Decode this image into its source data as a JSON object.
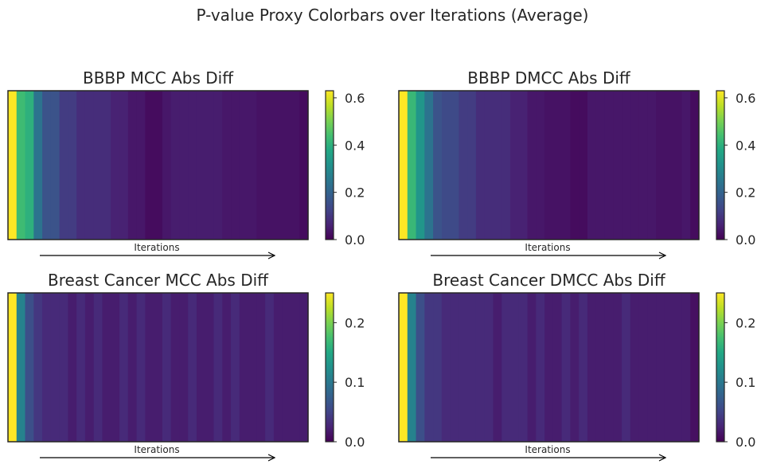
{
  "figure": {
    "title": "P-value Proxy Colorbars over Iterations (Average)",
    "colormap": "viridis",
    "background": "#ffffff"
  },
  "chart_data": [
    {
      "type": "heatmap",
      "title": "BBBP MCC Abs Diff",
      "xlabel": "Iterations",
      "colorbar": {
        "min": 0.0,
        "max": 0.63,
        "ticks": [
          "0.0",
          "0.2",
          "0.4",
          "0.6"
        ],
        "tick_values": [
          0.0,
          0.2,
          0.4,
          0.6
        ]
      },
      "values": [
        0.63,
        0.43,
        0.4,
        0.24,
        0.16,
        0.16,
        0.11,
        0.11,
        0.08,
        0.08,
        0.08,
        0.08,
        0.06,
        0.06,
        0.04,
        0.04,
        0.02,
        0.02,
        0.04,
        0.05,
        0.05,
        0.05,
        0.05,
        0.05,
        0.05,
        0.04,
        0.04,
        0.04,
        0.04,
        0.03,
        0.03,
        0.03,
        0.03,
        0.03,
        0.02
      ]
    },
    {
      "type": "heatmap",
      "title": "BBBP DMCC Abs Diff",
      "xlabel": "Iterations",
      "colorbar": {
        "min": 0.0,
        "max": 0.63,
        "ticks": [
          "0.0",
          "0.2",
          "0.4",
          "0.6"
        ],
        "tick_values": [
          0.0,
          0.2,
          0.4,
          0.6
        ]
      },
      "values": [
        0.63,
        0.42,
        0.33,
        0.24,
        0.16,
        0.14,
        0.14,
        0.11,
        0.11,
        0.08,
        0.08,
        0.08,
        0.08,
        0.06,
        0.06,
        0.04,
        0.04,
        0.03,
        0.03,
        0.03,
        0.02,
        0.02,
        0.04,
        0.04,
        0.04,
        0.04,
        0.04,
        0.04,
        0.04,
        0.04,
        0.03,
        0.03,
        0.03,
        0.04,
        0.02
      ]
    },
    {
      "type": "heatmap",
      "title": "Breast Cancer MCC Abs Diff",
      "xlabel": "Iterations",
      "colorbar": {
        "min": 0.0,
        "max": 0.25,
        "ticks": [
          "0.0",
          "0.1",
          "0.2"
        ],
        "tick_values": [
          0.0,
          0.1,
          0.2
        ]
      },
      "values": [
        0.25,
        0.11,
        0.06,
        0.04,
        0.03,
        0.03,
        0.03,
        0.02,
        0.03,
        0.02,
        0.03,
        0.02,
        0.02,
        0.03,
        0.02,
        0.03,
        0.02,
        0.02,
        0.03,
        0.02,
        0.02,
        0.03,
        0.02,
        0.02,
        0.03,
        0.02,
        0.03,
        0.02,
        0.02,
        0.02,
        0.03,
        0.02,
        0.02,
        0.02,
        0.02
      ]
    },
    {
      "type": "heatmap",
      "title": "Breast Cancer DMCC Abs Diff",
      "xlabel": "Iterations",
      "colorbar": {
        "min": 0.0,
        "max": 0.25,
        "ticks": [
          "0.0",
          "0.1",
          "0.2"
        ],
        "tick_values": [
          0.0,
          0.1,
          0.2
        ]
      },
      "values": [
        0.25,
        0.11,
        0.06,
        0.04,
        0.04,
        0.03,
        0.03,
        0.03,
        0.03,
        0.03,
        0.03,
        0.02,
        0.03,
        0.03,
        0.03,
        0.02,
        0.03,
        0.02,
        0.02,
        0.03,
        0.02,
        0.03,
        0.02,
        0.02,
        0.02,
        0.02,
        0.03,
        0.02,
        0.02,
        0.02,
        0.02,
        0.02,
        0.02,
        0.02,
        0.01
      ]
    }
  ]
}
